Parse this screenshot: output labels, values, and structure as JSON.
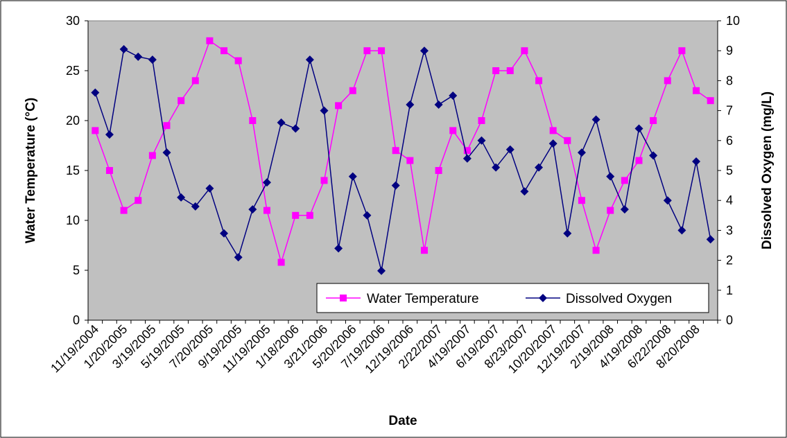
{
  "chart_data": {
    "type": "line",
    "xlabel": "Date",
    "ylabel_left": "Water Temperature (°C)",
    "ylabel_right": "Dissolved Oxygen (mg/L)",
    "ylim_left": [
      0,
      30
    ],
    "ylim_right": [
      0,
      10
    ],
    "yticks_left": [
      0,
      5,
      10,
      15,
      20,
      25,
      30
    ],
    "yticks_right": [
      0,
      1,
      2,
      3,
      4,
      5,
      6,
      7,
      8,
      9,
      10
    ],
    "grid": false,
    "legend_position": "bottom-right",
    "x_tick_labels": [
      "11/19/2004",
      "1/20/2005",
      "3/19/2005",
      "5/19/2005",
      "7/20/2005",
      "9/19/2005",
      "11/19/2005",
      "1/18/2006",
      "3/21/2006",
      "5/20/2006",
      "7/19/2006",
      "12/19/2006",
      "2/22/2007",
      "4/19/2007",
      "6/19/2007",
      "8/23/2007",
      "10/20/2007",
      "12/19/2007",
      "2/19/2008",
      "4/19/2008",
      "6/22/2008",
      "8/20/2008"
    ],
    "series": [
      {
        "name": "Water Temperature",
        "axis": "left",
        "color": "#ff00ff",
        "marker": "square",
        "values": [
          19,
          15,
          11,
          12,
          16.5,
          19.5,
          22,
          24,
          28,
          27,
          26,
          20,
          11,
          5.8,
          10.5,
          10.5,
          14,
          21.5,
          23,
          27,
          27,
          17,
          16,
          7,
          15,
          19,
          17,
          20,
          25,
          25,
          27,
          24,
          19,
          18,
          12,
          7,
          11,
          14,
          16,
          20,
          24,
          27,
          23,
          22
        ]
      },
      {
        "name": "Dissolved Oxygen",
        "axis": "right",
        "color": "#000080",
        "marker": "diamond",
        "values": [
          7.6,
          6.2,
          9.05,
          8.8,
          8.7,
          5.6,
          4.1,
          3.8,
          4.4,
          2.9,
          2.1,
          3.7,
          4.6,
          6.6,
          6.4,
          8.7,
          7.0,
          2.4,
          4.8,
          3.5,
          1.65,
          4.5,
          7.2,
          9.0,
          7.2,
          7.5,
          5.4,
          6.0,
          5.1,
          5.7,
          4.3,
          5.1,
          5.9,
          2.9,
          5.6,
          6.7,
          4.8,
          3.7,
          6.4,
          5.5,
          4.0,
          3.0,
          5.3,
          2.7
        ]
      }
    ]
  }
}
